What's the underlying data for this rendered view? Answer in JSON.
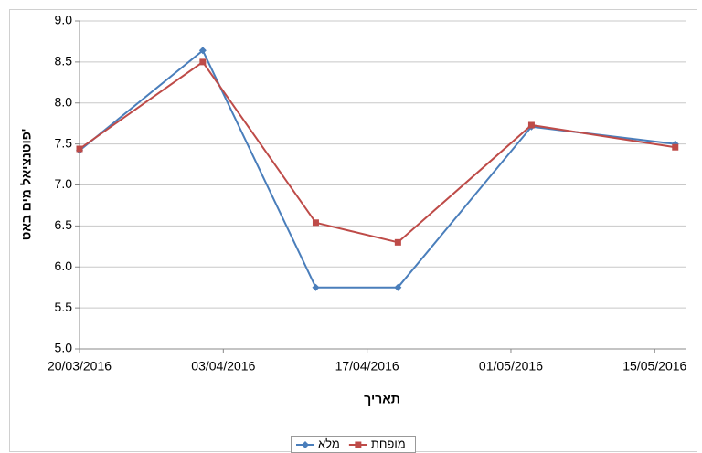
{
  "chart_data": {
    "type": "line",
    "y_label": "פוטנציאל מים באט'",
    "x_label": "תאריך",
    "x": [
      "2016-03-20",
      "2016-04-01",
      "2016-04-12",
      "2016-04-20",
      "2016-05-03",
      "2016-05-17"
    ],
    "series": [
      {
        "name": "מלא",
        "color": "#4a7ebb",
        "marker": "diamond",
        "values": [
          7.42,
          8.64,
          5.75,
          5.75,
          7.71,
          7.5
        ]
      },
      {
        "name": "מופחת",
        "color": "#be4b48",
        "marker": "square",
        "values": [
          7.44,
          8.5,
          6.54,
          6.3,
          7.73,
          7.46
        ]
      }
    ],
    "xlim": [
      "2016-03-20",
      "2016-05-18"
    ],
    "xticks": [
      {
        "value": "2016-03-20",
        "label": "20/03/2016"
      },
      {
        "value": "2016-04-03",
        "label": "03/04/2016"
      },
      {
        "value": "2016-04-17",
        "label": "17/04/2016"
      },
      {
        "value": "2016-05-01",
        "label": "01/05/2016"
      },
      {
        "value": "2016-05-15",
        "label": "15/05/2016"
      }
    ],
    "ylim": [
      5,
      9
    ],
    "yticks": [
      {
        "value": 5,
        "label": "5.0"
      },
      {
        "value": 5.5,
        "label": "5.5"
      },
      {
        "value": 6,
        "label": "6.0"
      },
      {
        "value": 6.5,
        "label": "6.5"
      },
      {
        "value": 7,
        "label": "7.0"
      },
      {
        "value": 7.5,
        "label": "7.5"
      },
      {
        "value": 8,
        "label": "8.0"
      },
      {
        "value": 8.5,
        "label": "8.5"
      },
      {
        "value": 9,
        "label": "9.0"
      }
    ],
    "grid": true
  }
}
